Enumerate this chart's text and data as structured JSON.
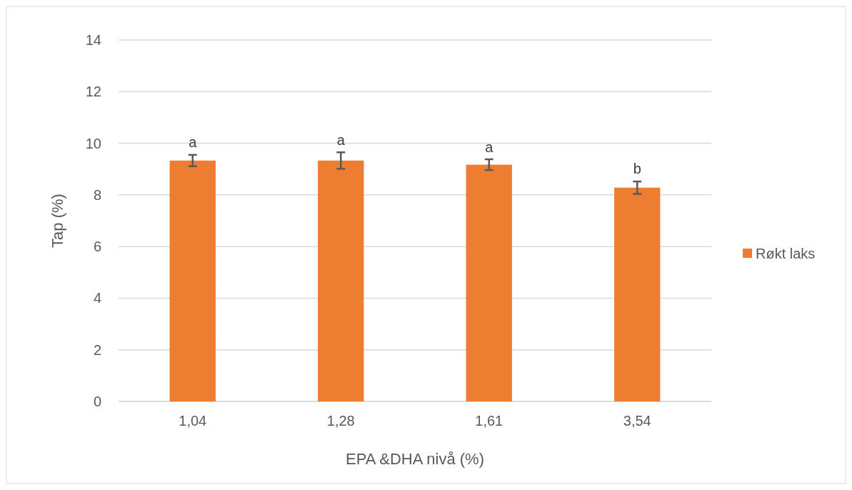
{
  "chart_data": {
    "type": "bar",
    "xlabel": "EPA &DHA nivå (%)",
    "ylabel": "Tap (%)",
    "categories": [
      "1,04",
      "1,28",
      "1,61",
      "3,54"
    ],
    "series": [
      {
        "name": "Røkt laks",
        "color": "#ed7d31",
        "values": [
          9.33,
          9.33,
          9.17,
          8.28
        ],
        "errors": [
          0.22,
          0.32,
          0.21,
          0.24
        ]
      }
    ],
    "ylim": [
      0,
      14
    ],
    "yticks": [
      0,
      2,
      4,
      6,
      8,
      10,
      12,
      14
    ],
    "grid": "y",
    "legend": "right",
    "annotations": [
      {
        "text": "a",
        "x": "1,04",
        "y": 9.56
      },
      {
        "text": "a",
        "x": "1,28",
        "y": 9.66
      },
      {
        "text": "a",
        "x": "1,61",
        "y": 9.39
      },
      {
        "text": "b",
        "x": "3,54",
        "y": 8.54
      }
    ]
  }
}
